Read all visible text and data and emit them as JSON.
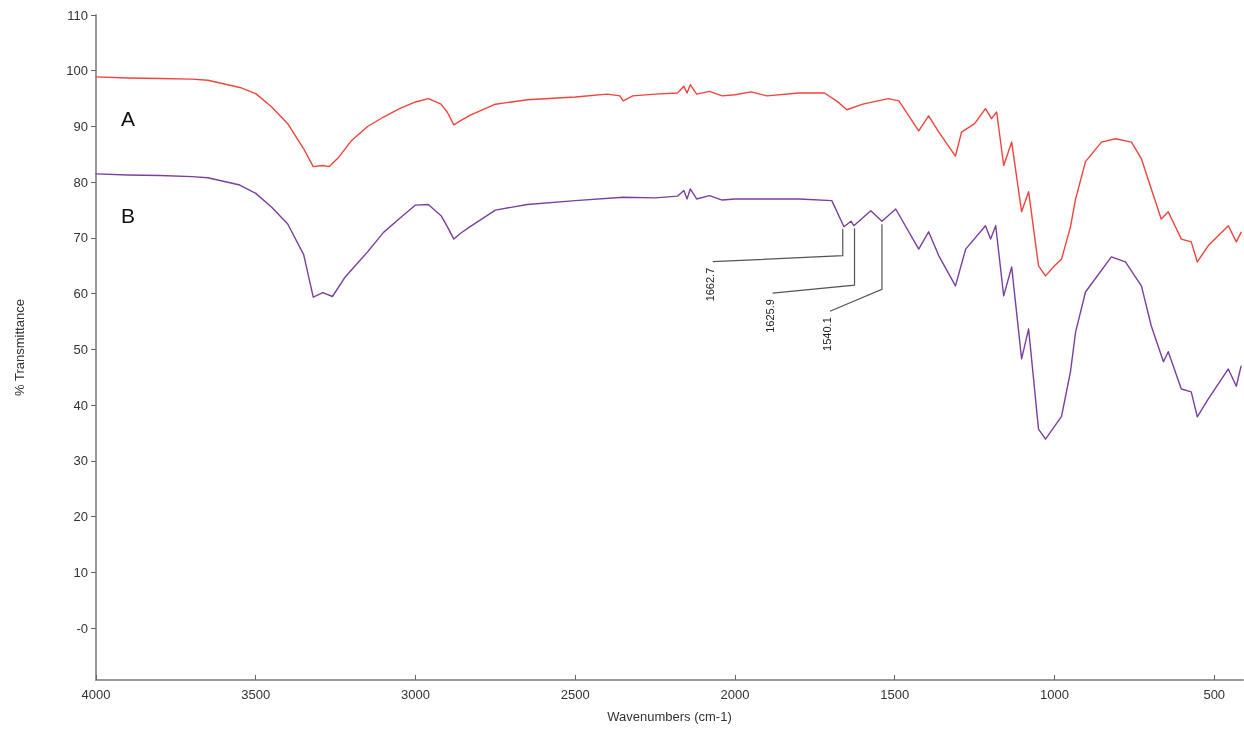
{
  "chart_data": {
    "type": "line",
    "xlabel": "Wavenumbers (cm-1)",
    "ylabel": "% Transmittance",
    "xlim": [
      4000,
      410
    ],
    "xticks": [
      4000,
      3500,
      3000,
      2500,
      2000,
      1500,
      1000,
      500
    ],
    "ylim": [
      -9.3,
      110
    ],
    "yticks": [
      {
        "value": 0,
        "label": "-0"
      },
      10,
      20,
      30,
      40,
      50,
      60,
      70,
      80,
      90,
      100,
      110
    ],
    "grid": false,
    "marker": "none",
    "annotations": [
      {
        "text": "1662.7",
        "x": 1662.7,
        "y": 72.2
      },
      {
        "text": "1625.9",
        "x": 1625.9,
        "y": 72.3
      },
      {
        "text": "1540.1",
        "x": 1540.1,
        "y": 73
      }
    ],
    "series": [
      {
        "name": "A",
        "color": "#f0443c",
        "x": [
          4000,
          3900,
          3800,
          3700,
          3650,
          3550,
          3500,
          3450,
          3400,
          3350,
          3320,
          3290,
          3270,
          3240,
          3200,
          3150,
          3100,
          3050,
          3000,
          2960,
          2920,
          2900,
          2880,
          2860,
          2830,
          2750,
          2650,
          2500,
          2400,
          2360,
          2350,
          2320,
          2250,
          2180,
          2160,
          2150,
          2140,
          2120,
          2080,
          2040,
          2000,
          1950,
          1900,
          1800,
          1720,
          1680,
          1650,
          1600,
          1520,
          1487,
          1425,
          1394,
          1362,
          1310,
          1291,
          1250,
          1216,
          1197,
          1181,
          1159,
          1134,
          1103,
          1081,
          1050,
          1028,
          1000,
          978,
          950,
          934,
          903,
          853,
          809,
          759,
          728,
          697,
          666,
          644,
          603,
          572,
          553,
          519,
          456,
          431,
          416
        ],
        "values": [
          98.9,
          98.7,
          98.6,
          98.5,
          98.3,
          97,
          95.9,
          93.5,
          90.5,
          86,
          82.8,
          83,
          82.8,
          84.5,
          87.5,
          90,
          91.7,
          93.2,
          94.4,
          95,
          94,
          92.5,
          90.3,
          91,
          92,
          94,
          94.8,
          95.3,
          95.8,
          95.5,
          94.6,
          95.5,
          95.8,
          96,
          97.2,
          96,
          97.5,
          95.8,
          96.3,
          95.5,
          95.7,
          96.2,
          95.5,
          96,
          96,
          94.5,
          93,
          94,
          95,
          94.6,
          89.2,
          91.9,
          89,
          84.7,
          89,
          90.5,
          93.2,
          91.4,
          92.6,
          83,
          87.2,
          74.7,
          78.3,
          65,
          63.2,
          65,
          66.2,
          72,
          77,
          83.7,
          87.2,
          87.8,
          87.2,
          84.2,
          78.8,
          73.4,
          74.7,
          69.8,
          69.3,
          65.7,
          68.6,
          72.2,
          69.3,
          71
        ]
      },
      {
        "name": "B",
        "color": "#7b3f9e",
        "x": [
          4000,
          3900,
          3800,
          3700,
          3650,
          3550,
          3500,
          3450,
          3400,
          3350,
          3320,
          3290,
          3260,
          3220,
          3150,
          3100,
          3050,
          3000,
          2960,
          2920,
          2900,
          2880,
          2860,
          2830,
          2750,
          2650,
          2500,
          2350,
          2250,
          2180,
          2160,
          2150,
          2140,
          2120,
          2080,
          2040,
          2000,
          1900,
          1800,
          1697,
          1659,
          1637,
          1628,
          1575,
          1540,
          1497,
          1425,
          1394,
          1362,
          1310,
          1278,
          1216,
          1200,
          1184,
          1159,
          1134,
          1103,
          1081,
          1050,
          1028,
          978,
          950,
          934,
          903,
          822,
          778,
          728,
          697,
          659,
          644,
          603,
          572,
          553,
          519,
          456,
          431,
          416
        ],
        "values": [
          81.5,
          81.3,
          81.2,
          81,
          80.8,
          79.5,
          78,
          75.5,
          72.5,
          67,
          59.4,
          60.2,
          59.5,
          63,
          67.5,
          71,
          73.5,
          75.9,
          76,
          74,
          72,
          69.8,
          70.8,
          72,
          75,
          76,
          76.7,
          77.3,
          77.2,
          77.5,
          78.5,
          77,
          78.8,
          77,
          77.6,
          76.8,
          77,
          77,
          77,
          76.7,
          72,
          73,
          72.2,
          74.9,
          73,
          75.2,
          68,
          71.1,
          66.8,
          61.4,
          68,
          72.2,
          69.8,
          72.2,
          59.6,
          64.8,
          48.3,
          53.7,
          35.7,
          33.9,
          38,
          46,
          53.1,
          60.3,
          66.6,
          65.7,
          61.4,
          54.2,
          47.8,
          49.6,
          42.9,
          42.4,
          37.9,
          41.1,
          46.5,
          43.4,
          47
        ]
      }
    ]
  }
}
